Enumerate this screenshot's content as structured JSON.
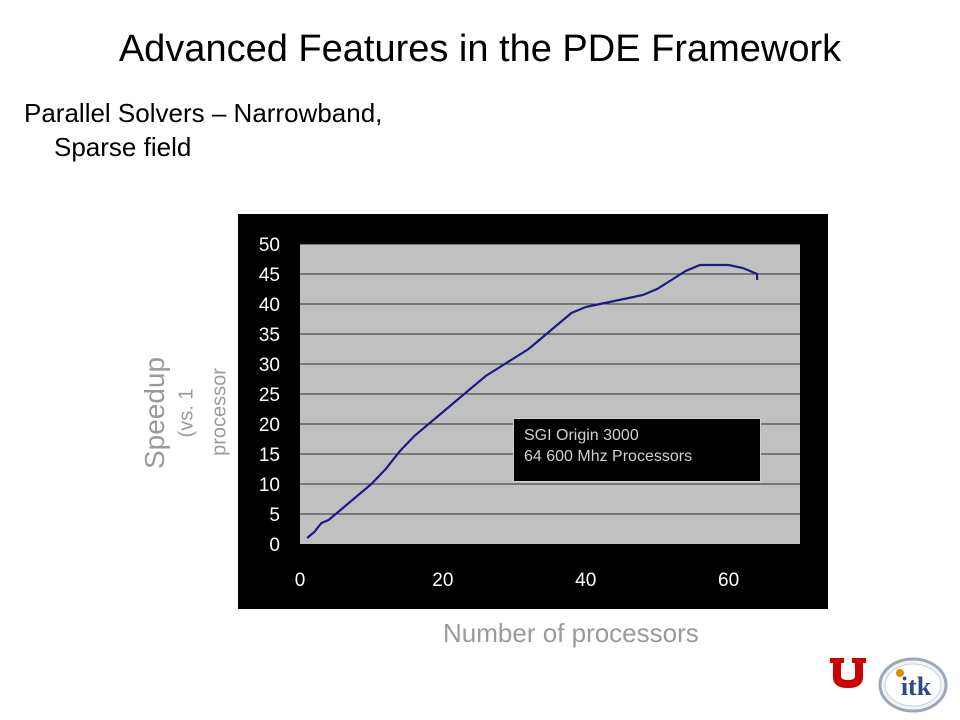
{
  "slide": {
    "title": "Advanced Features in the PDE Framework",
    "bullet_line1": "Parallel Solvers – Narrowband,",
    "bullet_line2": "Sparse field"
  },
  "axis_labels": {
    "y_main": "Speedup",
    "y_sub1": "(vs. 1",
    "y_sub2": "processor",
    "x": "Number of processors"
  },
  "legend": {
    "line1": "SGI Origin 3000",
    "line2": "64 600 Mhz Processors"
  },
  "logos": {
    "u_icon": "university-of-utah-u-logo",
    "itk_icon": "itk-logo",
    "itk_text": "itk"
  },
  "colors": {
    "line": "#1a1a8c",
    "plot_bg": "#c0c0c0",
    "frame_bg": "#000000",
    "u_red": "#cc0000"
  },
  "chart_data": {
    "type": "line",
    "xlim": [
      0,
      70
    ],
    "ylim": [
      0,
      50
    ],
    "xticks": [
      0,
      20,
      40,
      60
    ],
    "yticks": [
      0,
      5,
      10,
      15,
      20,
      25,
      30,
      35,
      40,
      45,
      50
    ],
    "grid": "horizontal",
    "series": [
      {
        "x": [
          1,
          2,
          3,
          4,
          5,
          6,
          7,
          8,
          9,
          10,
          12,
          14,
          16,
          18,
          20,
          22,
          24,
          26,
          28,
          30,
          32,
          34,
          36,
          38,
          40,
          42,
          44,
          46,
          48,
          50,
          52,
          54,
          56,
          58,
          60,
          62,
          63,
          64,
          64
        ],
        "y": [
          1,
          2,
          3.5,
          4,
          5,
          6,
          7,
          8,
          9,
          10,
          12.5,
          15.5,
          18,
          20,
          22,
          24,
          26,
          28,
          29.5,
          31,
          32.5,
          34.5,
          36.5,
          38.5,
          39.5,
          40,
          40.5,
          41,
          41.5,
          42.5,
          44,
          45.5,
          46.5,
          46.5,
          46.5,
          46,
          45.5,
          45,
          44
        ]
      }
    ]
  }
}
